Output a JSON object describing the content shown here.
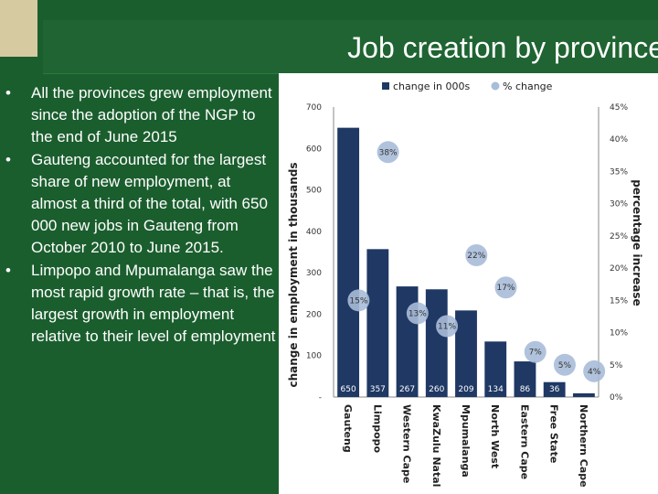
{
  "slide": {
    "title": "Job creation by province",
    "bullets": [
      "All the provinces grew employment since the adoption of the NGP to the end of June 2015",
      "Gauteng accounted for the largest share of new employment, at almost a third of the total, with 650 000 new jobs in Gauteng from October 2010 to June 2015.",
      "Limpopo and Mpumalanga saw the most rapid growth rate – that is, the largest growth in employment relative to their level of employment"
    ]
  },
  "colors": {
    "background": "#1b5e2e",
    "bar": "#1f3864",
    "bubble": "#a9bcd8",
    "deco": "#d6caa0"
  },
  "chart_data": {
    "type": "bar",
    "categories": [
      "Gauteng",
      "Limpopo",
      "Western Cape",
      "KwaZulu Natal",
      "Mpumalanga",
      "North West",
      "Eastern Cape",
      "Free State",
      "Northern Cape"
    ],
    "series": [
      {
        "name": "change in 000s",
        "type": "bar",
        "axis": "left",
        "values": [
          650,
          357,
          267,
          260,
          209,
          134,
          86,
          36,
          9
        ]
      },
      {
        "name": "% change",
        "type": "scatter",
        "axis": "right",
        "values": [
          15,
          38,
          13,
          11,
          22,
          17,
          7,
          5,
          4
        ]
      }
    ],
    "bar_value_labels": [
      "650",
      "357",
      "267",
      "260",
      "209",
      "134",
      "86",
      "36",
      ""
    ],
    "point_value_labels": [
      "15%",
      "38%",
      "13%",
      "11%",
      "22%",
      "17%",
      "7%",
      "5%",
      "4%"
    ],
    "ylabel": "change in employment in thousands",
    "y2label": "percentage increase",
    "ylim": [
      0,
      700
    ],
    "y_ticks": [
      "-",
      "100",
      "200",
      "300",
      "400",
      "500",
      "600",
      "700"
    ],
    "y2lim": [
      0,
      45
    ],
    "y2_ticks": [
      "0%",
      "5%",
      "10%",
      "15%",
      "20%",
      "25%",
      "30%",
      "35%",
      "40%",
      "45%"
    ],
    "legend_position": "top",
    "grid": false
  }
}
